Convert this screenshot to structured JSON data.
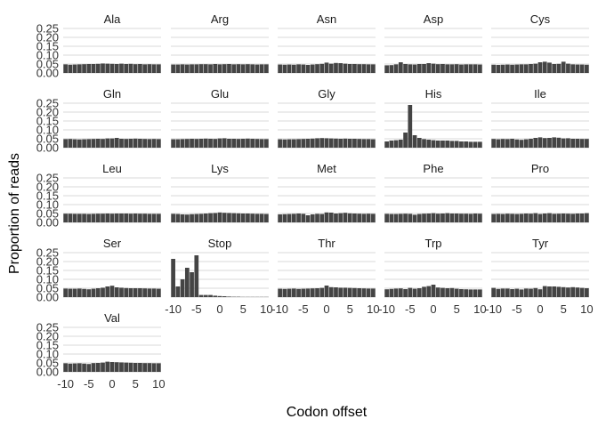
{
  "chart_data": {
    "type": "bar",
    "layout": "faceted grid, 5 columns",
    "xlabel": "Codon offset",
    "ylabel": "Proportion of reads",
    "x_offsets": [
      -10,
      -9,
      -8,
      -7,
      -6,
      -5,
      -4,
      -3,
      -2,
      -1,
      0,
      1,
      2,
      3,
      4,
      5,
      6,
      7,
      8,
      9,
      10
    ],
    "xlim": [
      -10,
      10
    ],
    "x_ticks": [
      "-10",
      "-5",
      "0",
      "5",
      "10"
    ],
    "ylim": [
      0,
      0.25
    ],
    "y_ticks": [
      "0.00",
      "0.05",
      "0.10",
      "0.15",
      "0.20",
      "0.25"
    ],
    "grid": "horizontal only",
    "bar_color": "#444444",
    "panels": [
      {
        "name": "Ala",
        "values": [
          0.048,
          0.046,
          0.047,
          0.048,
          0.049,
          0.05,
          0.05,
          0.051,
          0.053,
          0.052,
          0.051,
          0.05,
          0.052,
          0.05,
          0.051,
          0.049,
          0.05,
          0.048,
          0.049,
          0.048,
          0.048
        ]
      },
      {
        "name": "Arg",
        "values": [
          0.047,
          0.047,
          0.048,
          0.047,
          0.048,
          0.048,
          0.049,
          0.049,
          0.048,
          0.05,
          0.048,
          0.049,
          0.05,
          0.048,
          0.049,
          0.048,
          0.049,
          0.048,
          0.047,
          0.048,
          0.048
        ]
      },
      {
        "name": "Asn",
        "values": [
          0.047,
          0.046,
          0.047,
          0.046,
          0.048,
          0.047,
          0.045,
          0.047,
          0.049,
          0.051,
          0.058,
          0.052,
          0.056,
          0.055,
          0.052,
          0.05,
          0.05,
          0.049,
          0.049,
          0.048,
          0.048
        ]
      },
      {
        "name": "Asp",
        "values": [
          0.043,
          0.044,
          0.048,
          0.06,
          0.05,
          0.048,
          0.047,
          0.05,
          0.05,
          0.055,
          0.052,
          0.049,
          0.05,
          0.048,
          0.048,
          0.049,
          0.047,
          0.048,
          0.048,
          0.048,
          0.047
        ]
      },
      {
        "name": "Cys",
        "values": [
          0.046,
          0.045,
          0.046,
          0.047,
          0.046,
          0.047,
          0.048,
          0.048,
          0.05,
          0.052,
          0.06,
          0.063,
          0.058,
          0.05,
          0.051,
          0.063,
          0.052,
          0.048,
          0.047,
          0.047,
          0.046
        ]
      },
      {
        "name": "Gln",
        "values": [
          0.048,
          0.049,
          0.047,
          0.046,
          0.047,
          0.048,
          0.049,
          0.05,
          0.049,
          0.052,
          0.052,
          0.055,
          0.05,
          0.049,
          0.05,
          0.051,
          0.05,
          0.049,
          0.048,
          0.049,
          0.048
        ]
      },
      {
        "name": "Glu",
        "values": [
          0.047,
          0.047,
          0.048,
          0.049,
          0.05,
          0.049,
          0.05,
          0.051,
          0.05,
          0.049,
          0.052,
          0.053,
          0.05,
          0.05,
          0.049,
          0.05,
          0.051,
          0.05,
          0.049,
          0.048,
          0.048
        ]
      },
      {
        "name": "Gly",
        "values": [
          0.047,
          0.046,
          0.047,
          0.047,
          0.048,
          0.049,
          0.05,
          0.051,
          0.053,
          0.054,
          0.053,
          0.052,
          0.051,
          0.05,
          0.051,
          0.05,
          0.05,
          0.049,
          0.048,
          0.048,
          0.047
        ]
      },
      {
        "name": "His",
        "values": [
          0.035,
          0.04,
          0.042,
          0.045,
          0.085,
          0.24,
          0.07,
          0.055,
          0.048,
          0.045,
          0.042,
          0.04,
          0.04,
          0.04,
          0.038,
          0.038,
          0.035,
          0.035,
          0.033,
          0.033,
          0.033
        ]
      },
      {
        "name": "Ile",
        "values": [
          0.049,
          0.047,
          0.049,
          0.048,
          0.05,
          0.046,
          0.044,
          0.047,
          0.05,
          0.055,
          0.058,
          0.054,
          0.055,
          0.058,
          0.056,
          0.052,
          0.053,
          0.05,
          0.05,
          0.049,
          0.049
        ]
      },
      {
        "name": "Leu",
        "values": [
          0.049,
          0.049,
          0.048,
          0.048,
          0.048,
          0.047,
          0.048,
          0.049,
          0.049,
          0.05,
          0.049,
          0.05,
          0.05,
          0.05,
          0.049,
          0.05,
          0.049,
          0.049,
          0.048,
          0.048,
          0.048
        ]
      },
      {
        "name": "Lys",
        "values": [
          0.048,
          0.047,
          0.045,
          0.044,
          0.046,
          0.047,
          0.048,
          0.05,
          0.052,
          0.053,
          0.056,
          0.054,
          0.053,
          0.052,
          0.051,
          0.05,
          0.05,
          0.049,
          0.048,
          0.048,
          0.047
        ]
      },
      {
        "name": "Met",
        "values": [
          0.045,
          0.046,
          0.047,
          0.048,
          0.05,
          0.048,
          0.04,
          0.045,
          0.048,
          0.047,
          0.056,
          0.055,
          0.05,
          0.052,
          0.054,
          0.051,
          0.05,
          0.049,
          0.048,
          0.049,
          0.048
        ]
      },
      {
        "name": "Phe",
        "values": [
          0.048,
          0.047,
          0.047,
          0.048,
          0.049,
          0.048,
          0.043,
          0.047,
          0.049,
          0.05,
          0.052,
          0.049,
          0.05,
          0.052,
          0.05,
          0.05,
          0.049,
          0.049,
          0.048,
          0.05,
          0.049
        ]
      },
      {
        "name": "Pro",
        "values": [
          0.047,
          0.048,
          0.047,
          0.049,
          0.048,
          0.047,
          0.048,
          0.05,
          0.049,
          0.052,
          0.047,
          0.05,
          0.052,
          0.048,
          0.049,
          0.05,
          0.049,
          0.048,
          0.05,
          0.05,
          0.052
        ]
      },
      {
        "name": "Ser",
        "values": [
          0.048,
          0.047,
          0.047,
          0.048,
          0.046,
          0.044,
          0.047,
          0.05,
          0.053,
          0.06,
          0.064,
          0.055,
          0.053,
          0.051,
          0.05,
          0.05,
          0.05,
          0.049,
          0.048,
          0.048,
          0.047
        ]
      },
      {
        "name": "Stop",
        "values": [
          0.215,
          0.06,
          0.1,
          0.165,
          0.14,
          0.235,
          0.012,
          0.012,
          0.012,
          0.008,
          0.006,
          0.005,
          0.003,
          0.002,
          0.002,
          0.001,
          0.001,
          0.001,
          0.001,
          0.001,
          0.001
        ]
      },
      {
        "name": "Thr",
        "values": [
          0.047,
          0.046,
          0.047,
          0.048,
          0.046,
          0.047,
          0.048,
          0.049,
          0.05,
          0.052,
          0.065,
          0.056,
          0.055,
          0.053,
          0.053,
          0.052,
          0.051,
          0.05,
          0.049,
          0.048,
          0.048
        ]
      },
      {
        "name": "Trp",
        "values": [
          0.044,
          0.046,
          0.048,
          0.049,
          0.045,
          0.052,
          0.047,
          0.05,
          0.058,
          0.062,
          0.07,
          0.054,
          0.052,
          0.05,
          0.051,
          0.047,
          0.045,
          0.044,
          0.043,
          0.043,
          0.043
        ]
      },
      {
        "name": "Tyr",
        "values": [
          0.052,
          0.046,
          0.048,
          0.048,
          0.045,
          0.047,
          0.043,
          0.048,
          0.047,
          0.051,
          0.044,
          0.062,
          0.06,
          0.06,
          0.058,
          0.056,
          0.054,
          0.056,
          0.054,
          0.052,
          0.05
        ]
      },
      {
        "name": "Val",
        "values": [
          0.048,
          0.046,
          0.047,
          0.048,
          0.046,
          0.044,
          0.049,
          0.05,
          0.052,
          0.057,
          0.055,
          0.054,
          0.053,
          0.052,
          0.051,
          0.05,
          0.05,
          0.049,
          0.049,
          0.048,
          0.048
        ]
      }
    ]
  }
}
